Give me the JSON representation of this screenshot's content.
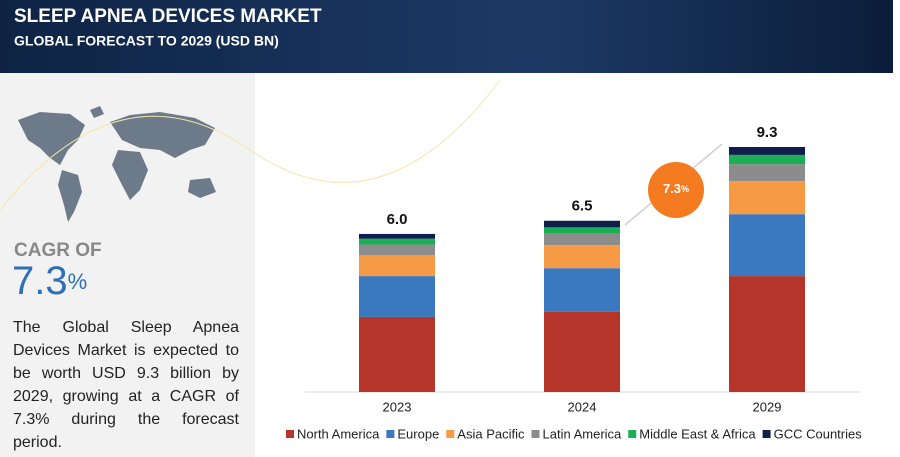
{
  "header": {
    "title": "SLEEP APNEA DEVICES MARKET",
    "subtitle": "GLOBAL FORECAST TO 2029 (USD BN)"
  },
  "summary": {
    "cagr_label": "CAGR OF",
    "cagr_value": "7.3",
    "cagr_unit": "%",
    "text": "The Global Sleep Apnea Devices Market is expected to be worth USD 9.3 billion by 2029, growing at a CAGR of 7.3% during the forecast period."
  },
  "chart_data": {
    "type": "stacked_bar",
    "categories": [
      "2023",
      "2024",
      "2029"
    ],
    "series": [
      {
        "name": "North America",
        "color": "#b5352b",
        "values": [
          2.85,
          3.05,
          4.4
        ]
      },
      {
        "name": "Europe",
        "color": "#3a78bf",
        "values": [
          1.55,
          1.65,
          2.35
        ]
      },
      {
        "name": "Asia Pacific",
        "color": "#f79a46",
        "values": [
          0.8,
          0.87,
          1.25
        ]
      },
      {
        "name": "Latin America",
        "color": "#8c8c8c",
        "values": [
          0.4,
          0.45,
          0.65
        ]
      },
      {
        "name": "Middle East & Africa",
        "color": "#1aaf54",
        "values": [
          0.22,
          0.23,
          0.35
        ]
      },
      {
        "name": "GCC Countries",
        "color": "#0f1f4d",
        "values": [
          0.18,
          0.25,
          0.3
        ]
      }
    ],
    "totals": [
      6.0,
      6.5,
      9.3
    ],
    "value_labels": [
      "6.0",
      "6.5",
      "9.3"
    ],
    "annotation": {
      "value": "7.3",
      "unit": "%"
    },
    "legend": "bottom"
  }
}
